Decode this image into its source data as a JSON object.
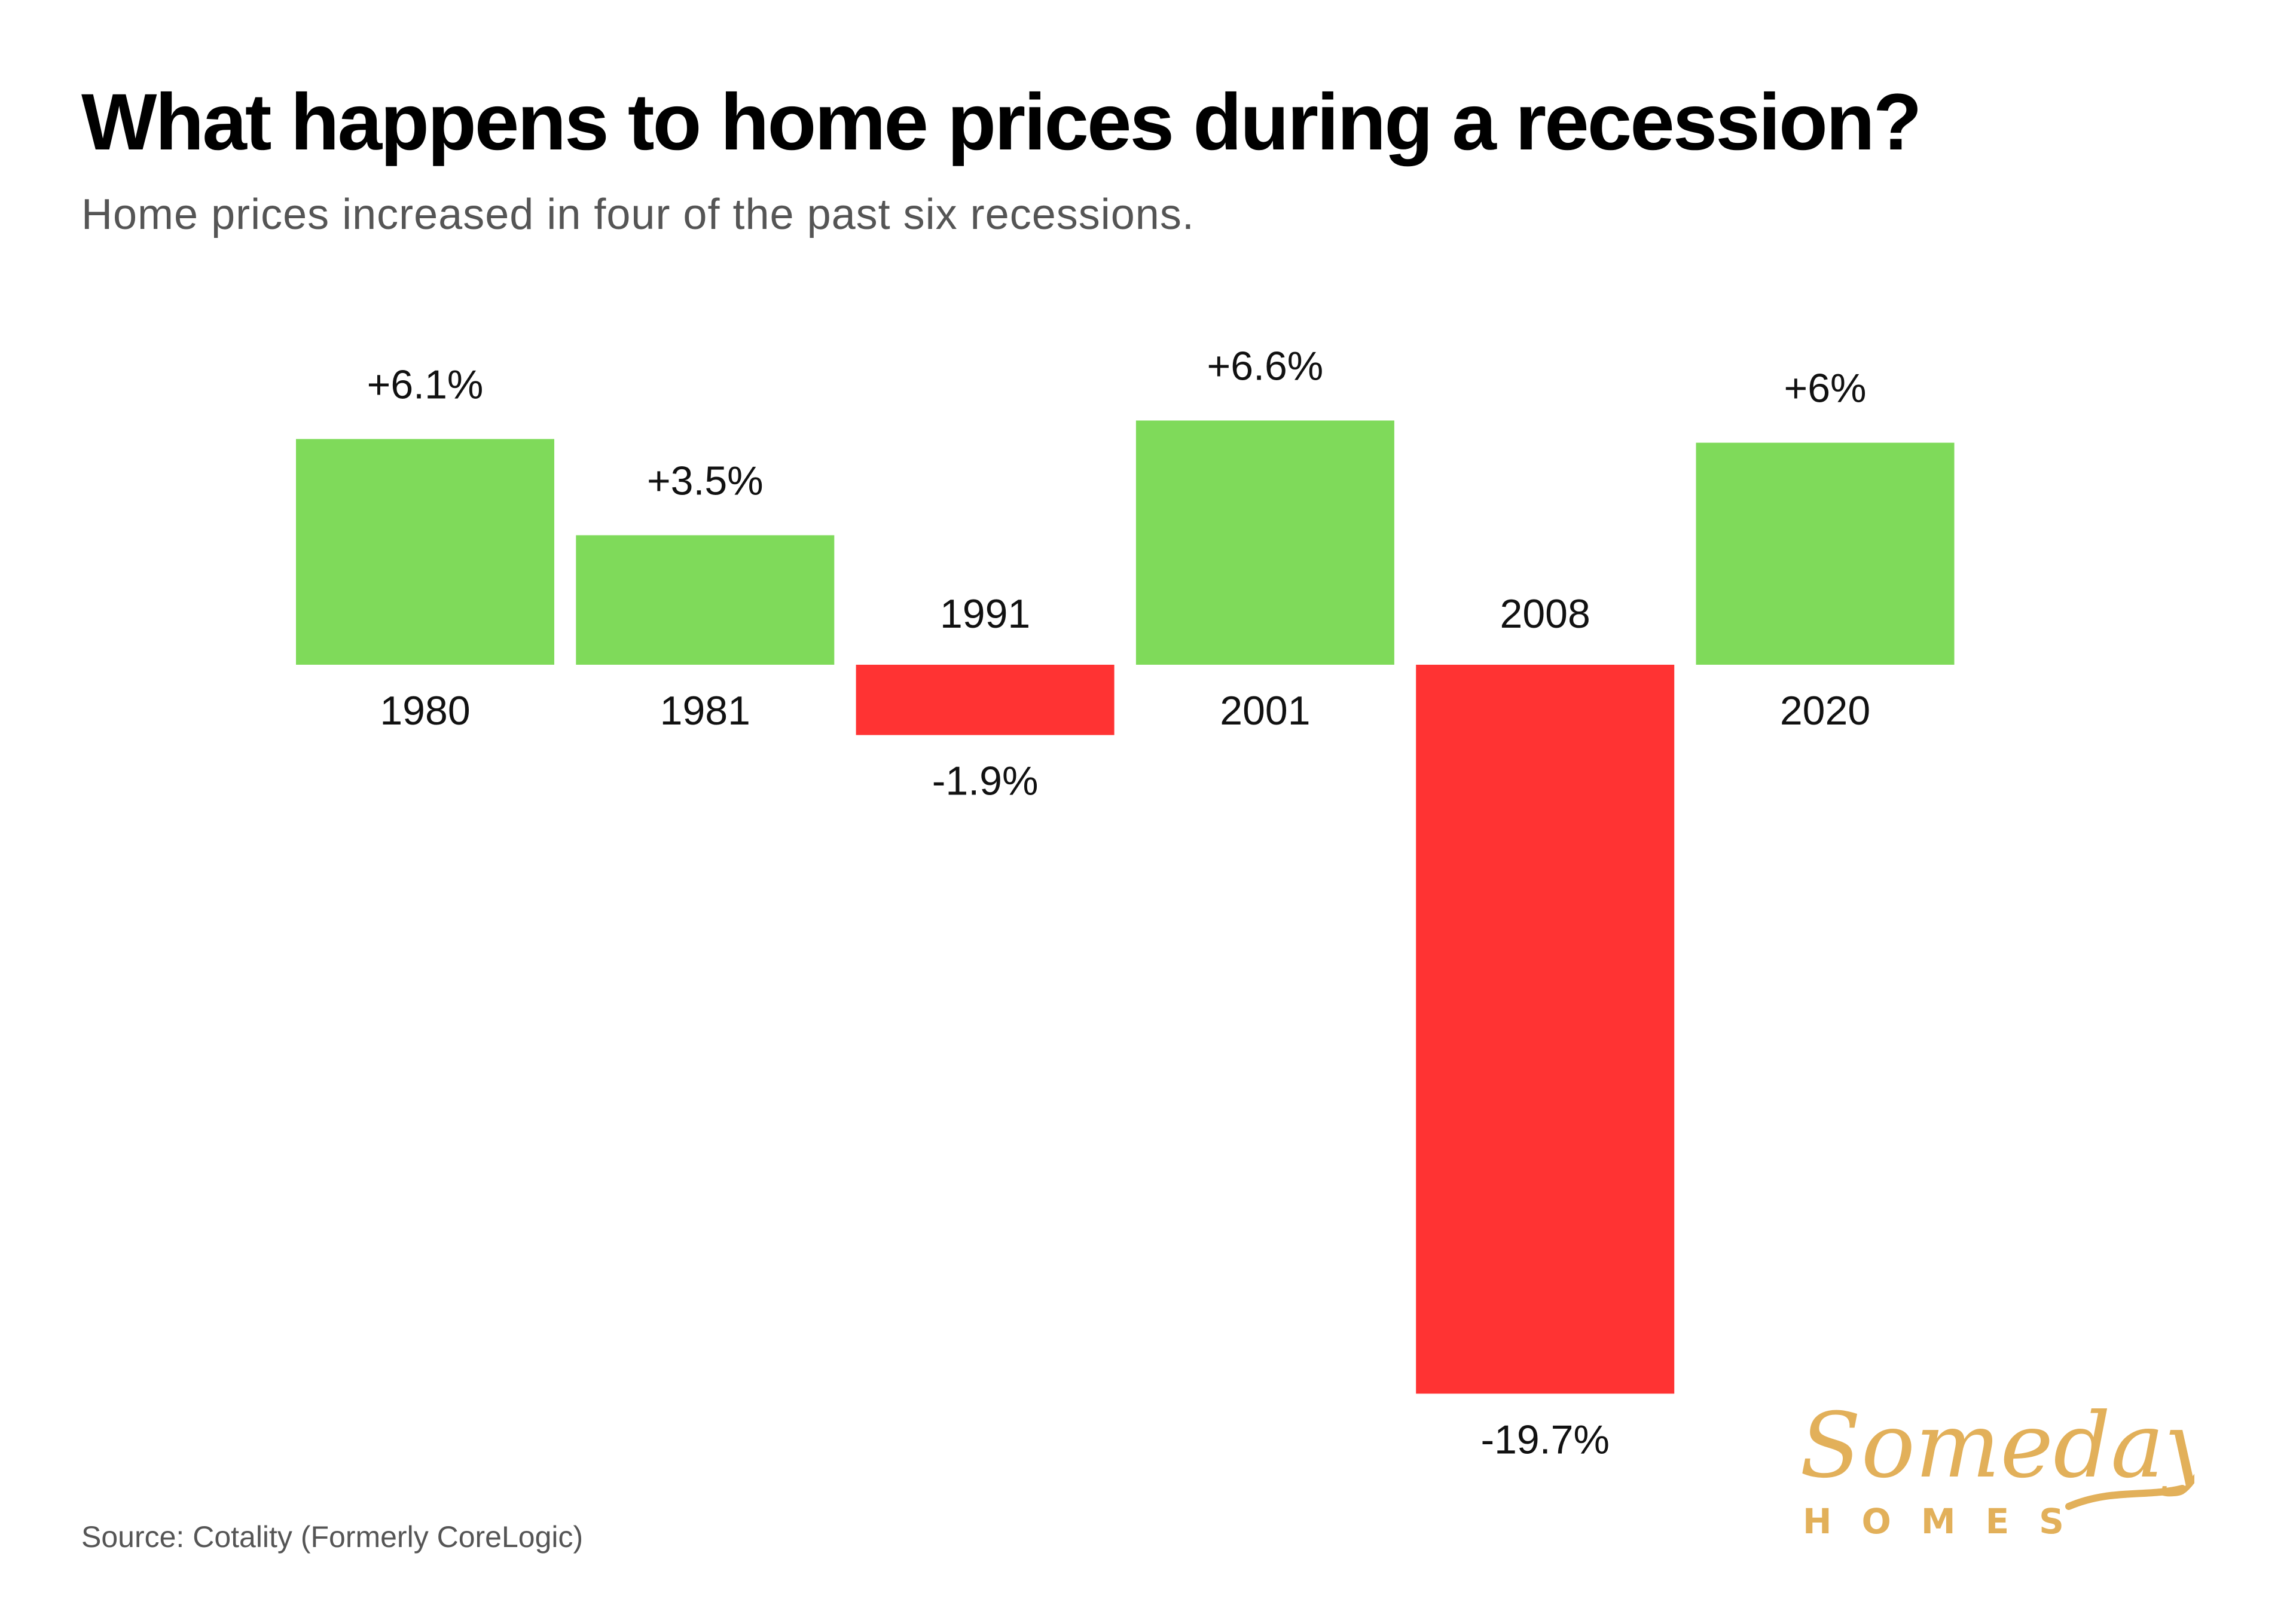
{
  "title": "What happens to home prices during a recession?",
  "subtitle": "Home prices increased in four of the past six recessions.",
  "source": "Source: Cotality (Formerly CoreLogic)",
  "logo": {
    "script": "Someday",
    "word": "HOMES",
    "color": "#E2B05A"
  },
  "colors": {
    "positive": "#7FDA5A",
    "negative": "#FF3333"
  },
  "chart_data": {
    "type": "bar",
    "title": "What happens to home prices during a recession?",
    "subtitle": "Home prices increased in four of the past six recessions.",
    "categories": [
      "1980",
      "1981",
      "1991",
      "2001",
      "2008",
      "2020"
    ],
    "values": [
      6.1,
      3.5,
      -1.9,
      6.6,
      -19.7,
      6.0
    ],
    "data_labels": [
      "+6.1%",
      "+3.5%",
      "-1.9%",
      "+6.6%",
      "-19.7%",
      "+6%"
    ],
    "xlabel": "",
    "ylabel": "",
    "ylim": [
      -19.7,
      6.6
    ],
    "grid": false,
    "axis_visible": false
  }
}
